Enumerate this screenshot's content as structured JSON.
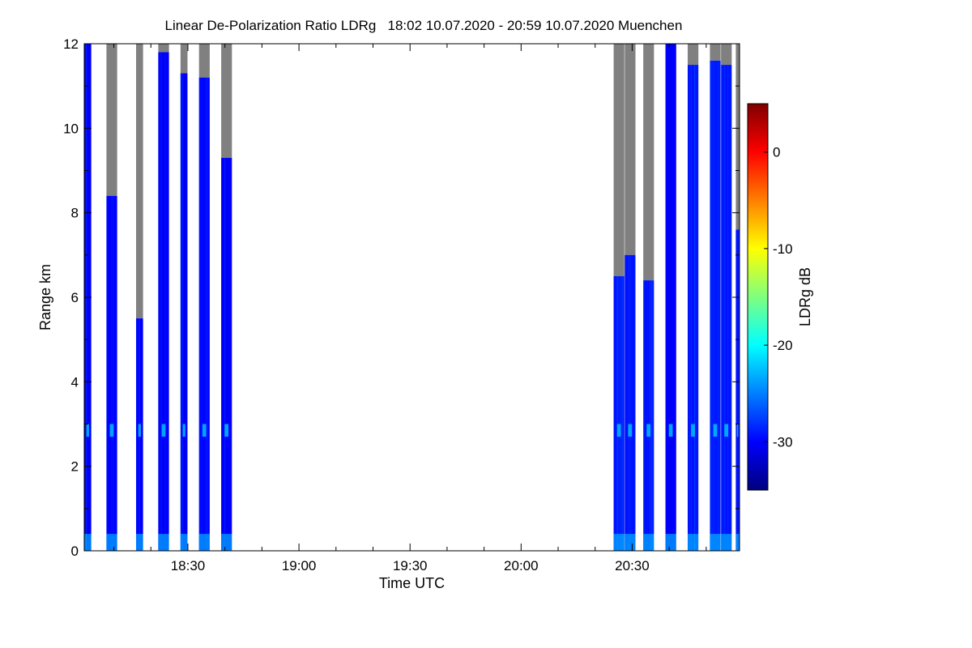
{
  "chart_data": {
    "type": "heatmap",
    "title": "Linear De-Polarization Ratio LDRg   18:02 10.07.2020 - 20:59 10.07.2020 Muenchen",
    "xlabel": "Time UTC",
    "ylabel": "Range km",
    "colorbar_label": "LDRg dB",
    "x_range_minutes_utc": [
      1082,
      1259
    ],
    "x_ticks": [
      {
        "minute": 1110,
        "label": "18:30"
      },
      {
        "minute": 1140,
        "label": "19:00"
      },
      {
        "minute": 1170,
        "label": "19:30"
      },
      {
        "minute": 1200,
        "label": "20:00"
      },
      {
        "minute": 1230,
        "label": "20:30"
      }
    ],
    "ylim": [
      0,
      12
    ],
    "y_ticks": [
      0,
      2,
      4,
      6,
      8,
      10,
      12
    ],
    "colorbar_range_db": [
      -35,
      5
    ],
    "colorbar_ticks": [
      0,
      -10,
      -20,
      -30
    ],
    "colormap": [
      "#00007f",
      "#0000ff",
      "#007fff",
      "#00ffff",
      "#7fff7f",
      "#ffff00",
      "#ff7f00",
      "#ff0000",
      "#7f0000"
    ],
    "gap_color": "#808080",
    "background_ldr_db": -30,
    "profiles": [
      {
        "start": "18:02",
        "end": "18:04",
        "gap_above_km": 12.2,
        "mean_ldr_db": -30
      },
      {
        "start": "18:08",
        "end": "18:11",
        "gap_above_km": 8.4,
        "mean_ldr_db": -30
      },
      {
        "start": "18:16",
        "end": "18:18",
        "gap_above_km": 5.5,
        "mean_ldr_db": -30
      },
      {
        "start": "18:22",
        "end": "18:25",
        "gap_above_km": 11.8,
        "mean_ldr_db": -30
      },
      {
        "start": "18:28",
        "end": "18:30",
        "gap_above_km": 11.3,
        "mean_ldr_db": -30
      },
      {
        "start": "18:33",
        "end": "18:36",
        "gap_above_km": 11.2,
        "mean_ldr_db": -30
      },
      {
        "start": "18:39",
        "end": "18:42",
        "gap_above_km": 9.3,
        "mean_ldr_db": -30
      },
      {
        "start": "20:25",
        "end": "20:28",
        "gap_above_km": 6.5,
        "mean_ldr_db": -29
      },
      {
        "start": "20:28",
        "end": "20:31",
        "gap_above_km": 7.0,
        "mean_ldr_db": -29
      },
      {
        "start": "20:33",
        "end": "20:36",
        "gap_above_km": 6.4,
        "mean_ldr_db": -29
      },
      {
        "start": "20:39",
        "end": "20:42",
        "gap_above_km": 12.2,
        "mean_ldr_db": -30
      },
      {
        "start": "20:45",
        "end": "20:48",
        "gap_above_km": 11.5,
        "mean_ldr_db": -29
      },
      {
        "start": "20:51",
        "end": "20:54",
        "gap_above_km": 11.6,
        "mean_ldr_db": -29
      },
      {
        "start": "20:54",
        "end": "20:57",
        "gap_above_km": 11.5,
        "mean_ldr_db": -29
      },
      {
        "start": "20:58",
        "end": "20:59",
        "gap_above_km": 7.6,
        "mean_ldr_db": -29
      }
    ],
    "features": [
      {
        "name": "aerosol_layer",
        "range_km": [
          2.7,
          3.0
        ],
        "ldr_db": -22
      },
      {
        "name": "near_surface",
        "range_km": [
          0.0,
          0.4
        ],
        "ldr_db": -22
      }
    ]
  }
}
